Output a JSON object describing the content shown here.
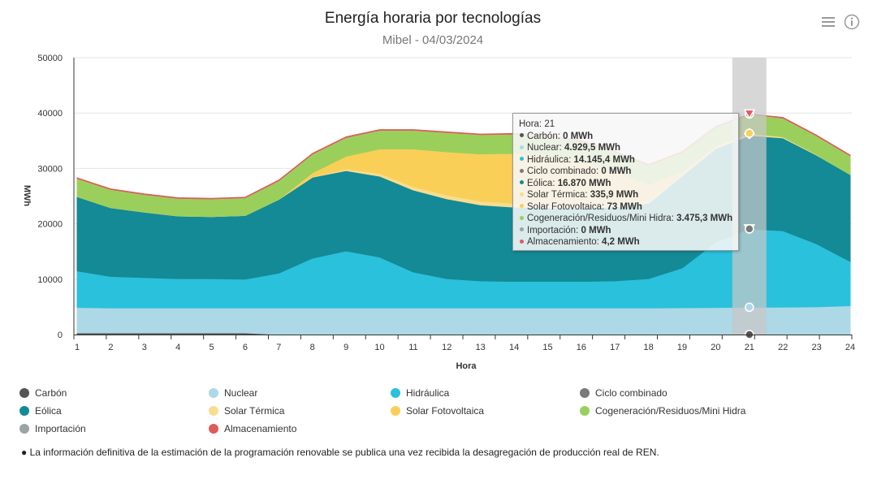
{
  "header": {
    "title": "Energía horaria por tecnologías",
    "subtitle": "Mibel - 04/03/2024",
    "menu_icon": "menu-icon",
    "info_icon": "info-icon"
  },
  "chart_data": {
    "type": "area",
    "stacked": true,
    "xlabel": "Hora",
    "ylabel": "MWh",
    "ylim": [
      0,
      50000
    ],
    "yticks": [
      0,
      10000,
      20000,
      30000,
      40000,
      50000
    ],
    "x": [
      1,
      2,
      3,
      4,
      5,
      6,
      7,
      8,
      9,
      10,
      11,
      12,
      13,
      14,
      15,
      16,
      17,
      18,
      19,
      20,
      21,
      22,
      23,
      24
    ],
    "highlight_x": 21,
    "series": [
      {
        "name": "Carbón",
        "color": "#555555",
        "values": [
          300,
          300,
          300,
          300,
          300,
          300,
          0,
          0,
          0,
          0,
          0,
          0,
          0,
          0,
          0,
          0,
          0,
          0,
          0,
          0,
          0,
          0,
          0,
          0
        ]
      },
      {
        "name": "Nuclear",
        "color": "#add8e6",
        "values": [
          4600,
          4500,
          4500,
          4500,
          4500,
          4500,
          4800,
          4800,
          4800,
          4800,
          4800,
          4800,
          4800,
          4800,
          4800,
          4800,
          4800,
          4800,
          4830,
          4880,
          4929.5,
          4950,
          5000,
          5200
        ]
      },
      {
        "name": "Hidráulica",
        "color": "#29c1dc",
        "values": [
          6600,
          5700,
          5500,
          5300,
          5300,
          5200,
          6300,
          9000,
          10300,
          9200,
          6500,
          5300,
          4900,
          4800,
          4800,
          4800,
          4900,
          5300,
          7200,
          11800,
          14145.4,
          13800,
          11400,
          8000
        ]
      },
      {
        "name": "Ciclo combinado",
        "color": "#7a7a7a",
        "values": [
          0,
          0,
          0,
          0,
          0,
          0,
          0,
          0,
          0,
          0,
          0,
          0,
          0,
          0,
          0,
          0,
          0,
          0,
          0,
          0,
          0,
          0,
          0,
          0
        ]
      },
      {
        "name": "Eólica",
        "color": "#138a96",
        "values": [
          13400,
          12400,
          11800,
          11300,
          11200,
          11500,
          13300,
          14600,
          14500,
          14600,
          14800,
          14400,
          13700,
          13400,
          13300,
          13200,
          13300,
          13600,
          16600,
          16900,
          16870,
          16750,
          16000,
          15700
        ]
      },
      {
        "name": "Solar Térmica",
        "color": "#f7dd8e",
        "values": [
          0,
          0,
          0,
          0,
          0,
          0,
          0,
          100,
          300,
          500,
          600,
          700,
          700,
          700,
          700,
          600,
          500,
          400,
          300,
          300,
          335.9,
          200,
          100,
          0
        ]
      },
      {
        "name": "Solar Fotovoltaica",
        "color": "#f9cf58",
        "values": [
          0,
          0,
          0,
          0,
          0,
          0,
          0,
          700,
          2300,
          4400,
          6800,
          7800,
          8500,
          9000,
          8800,
          8000,
          6000,
          3000,
          500,
          100,
          73,
          0,
          0,
          0
        ]
      },
      {
        "name": "Cogeneración/Residuos/Mini Hidra",
        "color": "#9bcf5c",
        "values": [
          3300,
          3300,
          3200,
          3200,
          3200,
          3200,
          3400,
          3400,
          3400,
          3400,
          3400,
          3500,
          3500,
          3500,
          3500,
          3500,
          3500,
          3500,
          3500,
          3500,
          3475.3,
          3400,
          3400,
          3400
        ]
      },
      {
        "name": "Importación",
        "color": "#9aa4a4",
        "values": [
          0,
          0,
          0,
          0,
          0,
          0,
          0,
          0,
          0,
          0,
          0,
          0,
          0,
          0,
          0,
          0,
          0,
          0,
          0,
          0,
          0,
          0,
          0,
          0
        ]
      },
      {
        "name": "Almacenamiento",
        "color": "#e05a5a",
        "values": [
          100,
          100,
          100,
          100,
          100,
          100,
          100,
          100,
          100,
          100,
          100,
          100,
          100,
          100,
          100,
          100,
          100,
          100,
          100,
          100,
          4.2,
          100,
          100,
          100
        ]
      }
    ]
  },
  "tooltip": {
    "header_label": "Hora:",
    "header_value": "21",
    "rows": [
      {
        "label": "Carbón:",
        "value": "0 MWh",
        "color": "#555555"
      },
      {
        "label": "Nuclear:",
        "value": "4.929,5 MWh",
        "color": "#add8e6"
      },
      {
        "label": "Hidráulica:",
        "value": "14.145,4 MWh",
        "color": "#29c1dc"
      },
      {
        "label": "Ciclo combinado:",
        "value": "0 MWh",
        "color": "#7a7a7a"
      },
      {
        "label": "Eólica:",
        "value": "16.870 MWh",
        "color": "#138a96"
      },
      {
        "label": "Solar Térmica:",
        "value": "335,9 MWh",
        "color": "#f7dd8e"
      },
      {
        "label": "Solar Fotovoltaica:",
        "value": "73 MWh",
        "color": "#f9cf58"
      },
      {
        "label": "Cogeneración/Residuos/Mini Hidra:",
        "value": "3.475,3 MWh",
        "color": "#9bcf5c"
      },
      {
        "label": "Importación:",
        "value": "0 MWh",
        "color": "#9aa4a4"
      },
      {
        "label": "Almacenamiento:",
        "value": "4,2 MWh",
        "color": "#e05a5a"
      }
    ]
  },
  "legend": {
    "items": [
      {
        "label": "Carbón",
        "color": "#555555"
      },
      {
        "label": "Nuclear",
        "color": "#add8e6"
      },
      {
        "label": "Hidráulica",
        "color": "#29c1dc"
      },
      {
        "label": "Ciclo combinado",
        "color": "#7a7a7a"
      },
      {
        "label": "Eólica",
        "color": "#138a96"
      },
      {
        "label": "Solar Térmica",
        "color": "#f7dd8e"
      },
      {
        "label": "Solar Fotovoltaica",
        "color": "#f9cf58"
      },
      {
        "label": "Cogeneración/Residuos/Mini Hidra",
        "color": "#9bcf5c"
      },
      {
        "label": "Importación",
        "color": "#9aa4a4"
      },
      {
        "label": "Almacenamiento",
        "color": "#e05a5a"
      }
    ]
  },
  "footnote": "● La información definitiva de la estimación de la programación renovable se publica una vez recibida la desagregación de producción real de REN."
}
